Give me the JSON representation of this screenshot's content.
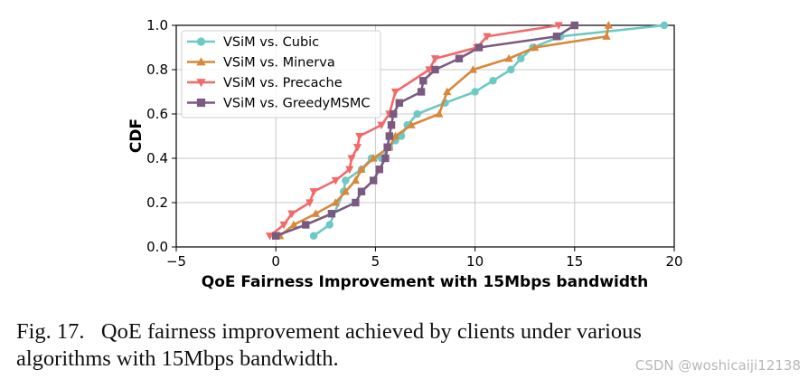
{
  "chart_data": {
    "type": "line",
    "title": "",
    "xlabel": "QoE Fairness Improvement with 15Mbps bandwidth",
    "ylabel": "CDF",
    "xlim": [
      -5,
      20
    ],
    "ylim": [
      0.0,
      1.0
    ],
    "xticks": [
      -5,
      0,
      5,
      10,
      15,
      20
    ],
    "yticks": [
      0.0,
      0.2,
      0.4,
      0.6,
      0.8,
      1.0
    ],
    "xtick_labels": [
      "−5",
      "0",
      "5",
      "10",
      "15",
      "20"
    ],
    "ytick_labels": [
      "0.0",
      "0.2",
      "0.4",
      "0.6",
      "0.8",
      "1.0"
    ],
    "grid": true,
    "legend_position": "top-left",
    "series": [
      {
        "name": "VSiM vs. Cubic",
        "color": "#6cc9c4",
        "marker": "circle",
        "points": [
          [
            1.9,
            0.05
          ],
          [
            2.7,
            0.1
          ],
          [
            3.4,
            0.25
          ],
          [
            3.5,
            0.3
          ],
          [
            4.3,
            0.35
          ],
          [
            4.8,
            0.4
          ],
          [
            5.3,
            0.4
          ],
          [
            5.7,
            0.45
          ],
          [
            6.0,
            0.48
          ],
          [
            6.3,
            0.5
          ],
          [
            6.6,
            0.55
          ],
          [
            7.1,
            0.6
          ],
          [
            8.5,
            0.65
          ],
          [
            10.0,
            0.7
          ],
          [
            10.9,
            0.75
          ],
          [
            11.8,
            0.8
          ],
          [
            12.3,
            0.85
          ],
          [
            12.9,
            0.9
          ],
          [
            14.3,
            0.95
          ],
          [
            19.5,
            1.0
          ]
        ]
      },
      {
        "name": "VSiM vs. Minerva",
        "color": "#d9873a",
        "marker": "triangle-up",
        "points": [
          [
            0.2,
            0.05
          ],
          [
            0.9,
            0.1
          ],
          [
            2.0,
            0.15
          ],
          [
            3.0,
            0.2
          ],
          [
            3.5,
            0.25
          ],
          [
            4.0,
            0.3
          ],
          [
            4.3,
            0.35
          ],
          [
            4.9,
            0.4
          ],
          [
            5.7,
            0.45
          ],
          [
            6.0,
            0.5
          ],
          [
            6.8,
            0.55
          ],
          [
            8.2,
            0.6
          ],
          [
            8.6,
            0.7
          ],
          [
            9.9,
            0.8
          ],
          [
            11.7,
            0.85
          ],
          [
            13.0,
            0.9
          ],
          [
            16.6,
            0.95
          ],
          [
            16.7,
            1.0
          ]
        ]
      },
      {
        "name": "VSiM vs. Precache",
        "color": "#f2696a",
        "marker": "triangle-down",
        "points": [
          [
            -0.3,
            0.05
          ],
          [
            0.4,
            0.1
          ],
          [
            0.8,
            0.15
          ],
          [
            1.7,
            0.2
          ],
          [
            1.9,
            0.25
          ],
          [
            3.0,
            0.3
          ],
          [
            3.7,
            0.35
          ],
          [
            3.8,
            0.4
          ],
          [
            4.1,
            0.45
          ],
          [
            4.2,
            0.5
          ],
          [
            5.3,
            0.55
          ],
          [
            5.7,
            0.6
          ],
          [
            6.0,
            0.7
          ],
          [
            7.7,
            0.8
          ],
          [
            8.0,
            0.85
          ],
          [
            10.1,
            0.9
          ],
          [
            10.6,
            0.95
          ],
          [
            14.2,
            1.0
          ]
        ]
      },
      {
        "name": "VSiM vs. GreedyMSMC",
        "color": "#7a5a80",
        "marker": "square",
        "points": [
          [
            0.0,
            0.05
          ],
          [
            1.5,
            0.1
          ],
          [
            2.8,
            0.15
          ],
          [
            4.0,
            0.2
          ],
          [
            4.3,
            0.25
          ],
          [
            4.9,
            0.3
          ],
          [
            5.2,
            0.35
          ],
          [
            5.5,
            0.4
          ],
          [
            5.6,
            0.45
          ],
          [
            5.7,
            0.5
          ],
          [
            5.8,
            0.55
          ],
          [
            5.9,
            0.6
          ],
          [
            6.2,
            0.65
          ],
          [
            7.3,
            0.7
          ],
          [
            7.4,
            0.75
          ],
          [
            8.0,
            0.8
          ],
          [
            9.2,
            0.85
          ],
          [
            10.2,
            0.9
          ],
          [
            14.1,
            0.95
          ],
          [
            15.0,
            1.0
          ]
        ]
      }
    ]
  },
  "caption": {
    "line1": "Fig. 17.   QoE fairness improvement achieved by clients under various",
    "line2": "algorithms with 15Mbps bandwidth."
  },
  "watermark": "CSDN @woshicaiji12138"
}
